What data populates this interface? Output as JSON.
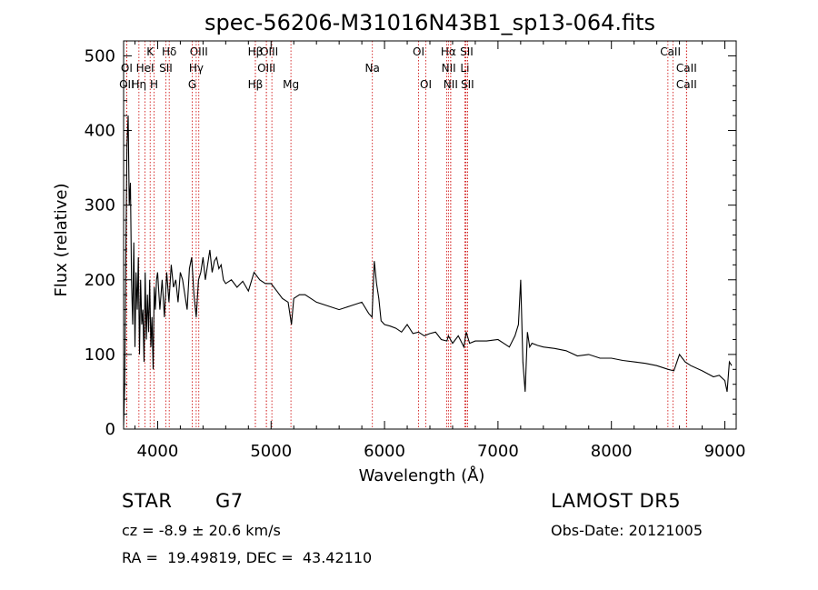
{
  "chart_data": {
    "type": "line",
    "title": "spec-56206-M31016N43B1_sp13-064.fits",
    "xlabel": "Wavelength (Å)",
    "ylabel": "Flux (relative)",
    "xlim": [
      3700,
      9100
    ],
    "ylim": [
      0,
      520
    ],
    "xticks": [
      4000,
      5000,
      6000,
      7000,
      8000,
      9000
    ],
    "yticks": [
      0,
      100,
      200,
      300,
      400,
      500
    ],
    "grid": false,
    "line_color": "#000000",
    "marker_color": "#cc0000",
    "series": [
      {
        "x": [
          3700,
          3710,
          3720,
          3730,
          3740,
          3750,
          3760,
          3770,
          3780,
          3790,
          3800,
          3810,
          3820,
          3830,
          3840,
          3850,
          3860,
          3870,
          3880,
          3890,
          3900,
          3910,
          3920,
          3930,
          3940,
          3950,
          3960,
          3970,
          3980,
          3990,
          4000,
          4020,
          4040,
          4060,
          4080,
          4100,
          4120,
          4140,
          4160,
          4180,
          4200,
          4220,
          4240,
          4260,
          4280,
          4300,
          4320,
          4340,
          4360,
          4380,
          4400,
          4420,
          4440,
          4460,
          4480,
          4500,
          4520,
          4540,
          4560,
          4580,
          4600,
          4650,
          4700,
          4750,
          4800,
          4850,
          4900,
          4950,
          5000,
          5050,
          5100,
          5150,
          5180,
          5200,
          5250,
          5300,
          5400,
          5500,
          5600,
          5700,
          5800,
          5860,
          5890,
          5910,
          5930,
          5950,
          5970,
          6000,
          6050,
          6100,
          6150,
          6200,
          6250,
          6300,
          6350,
          6400,
          6450,
          6500,
          6550,
          6563,
          6600,
          6650,
          6700,
          6720,
          6750,
          6800,
          6900,
          7000,
          7050,
          7100,
          7150,
          7180,
          7200,
          7220,
          7240,
          7260,
          7280,
          7300,
          7350,
          7400,
          7500,
          7600,
          7700,
          7800,
          7900,
          8000,
          8100,
          8200,
          8300,
          8400,
          8500,
          8550,
          8600,
          8650,
          8700,
          8800,
          8900,
          8950,
          9000,
          9020,
          9040,
          9060
        ],
        "y": [
          5,
          60,
          240,
          380,
          420,
          300,
          330,
          200,
          140,
          250,
          110,
          210,
          160,
          230,
          100,
          200,
          140,
          160,
          90,
          210,
          120,
          180,
          130,
          200,
          110,
          150,
          80,
          190,
          160,
          200,
          210,
          160,
          200,
          150,
          210,
          170,
          220,
          190,
          200,
          170,
          210,
          200,
          180,
          160,
          215,
          230,
          180,
          150,
          200,
          210,
          230,
          200,
          220,
          240,
          210,
          225,
          230,
          215,
          220,
          200,
          195,
          200,
          190,
          198,
          185,
          210,
          200,
          195,
          195,
          185,
          175,
          170,
          140,
          175,
          180,
          180,
          170,
          165,
          160,
          165,
          170,
          155,
          150,
          225,
          195,
          175,
          145,
          140,
          138,
          135,
          130,
          140,
          128,
          130,
          125,
          128,
          130,
          120,
          118,
          125,
          115,
          125,
          110,
          130,
          115,
          118,
          118,
          120,
          115,
          110,
          125,
          140,
          200,
          90,
          50,
          130,
          110,
          115,
          112,
          110,
          108,
          105,
          98,
          100,
          95,
          95,
          92,
          90,
          88,
          85,
          80,
          78,
          100,
          90,
          85,
          78,
          70,
          72,
          65,
          50,
          90,
          85
        ]
      }
    ],
    "line_markers": [
      {
        "label": "Hβ",
        "lines": [
          4861
        ],
        "row": 0
      },
      {
        "label": "K",
        "lines": [
          3934
        ],
        "row": 0
      },
      {
        "label": "Hδ",
        "lines": [
          4102
        ],
        "row": 0
      },
      {
        "label": "OIII",
        "lines": [
          4363
        ],
        "row": 0
      },
      {
        "label": "OIII",
        "lines": [
          4959,
          5007
        ],
        "row": 0
      },
      {
        "label": "OI",
        "lines": [
          6300
        ],
        "row": 0
      },
      {
        "label": "Hα",
        "lines": [
          6563
        ],
        "row": 0
      },
      {
        "label": "SII",
        "lines": [
          6717,
          6731
        ],
        "row": 0
      },
      {
        "label": "CaII",
        "lines": [
          8498,
          8542
        ],
        "row": 0
      },
      {
        "label": "OI",
        "lines": [
          3727
        ],
        "row": 1
      },
      {
        "label": "HeI",
        "lines": [
          3889
        ],
        "row": 1
      },
      {
        "label": "SII",
        "lines": [
          4072
        ],
        "row": 1
      },
      {
        "label": "Hγ",
        "lines": [
          4340
        ],
        "row": 1
      },
      {
        "label": "OIII",
        "lines": [
          4959
        ],
        "row": 1
      },
      {
        "label": "Na",
        "lines": [
          5893
        ],
        "row": 1
      },
      {
        "label": "NII",
        "lines": [
          6548,
          6583
        ],
        "row": 1
      },
      {
        "label": "Li",
        "lines": [
          6708
        ],
        "row": 1
      },
      {
        "label": "CaII",
        "lines": [
          8662
        ],
        "row": 1
      },
      {
        "label": "OII",
        "lines": [
          3727
        ],
        "row": 2
      },
      {
        "label": "Hη",
        "lines": [
          3835
        ],
        "row": 2
      },
      {
        "label": "H",
        "lines": [
          3969
        ],
        "row": 2
      },
      {
        "label": "G",
        "lines": [
          4305
        ],
        "row": 2
      },
      {
        "label": "Hβ",
        "lines": [
          4861
        ],
        "row": 2
      },
      {
        "label": "Mg",
        "lines": [
          5175
        ],
        "row": 2
      },
      {
        "label": "OI",
        "lines": [
          6364
        ],
        "row": 2
      },
      {
        "label": "NII",
        "lines": [
          6583
        ],
        "row": 2
      },
      {
        "label": "SII",
        "lines": [
          6731
        ],
        "row": 2
      },
      {
        "label": "CaII",
        "lines": [
          8662
        ],
        "row": 2
      }
    ],
    "marker_label_rows": [
      [
        "Hβ",
        "K",
        "Hδ",
        "OIII",
        "OIII",
        "OI",
        "Hα",
        "SII",
        "CaII"
      ],
      [
        "OI",
        "HeI",
        "SII",
        "Hγ",
        "OIII",
        "Na",
        "NII",
        "Li",
        "CaII"
      ],
      [
        "OII",
        "Hη",
        "H",
        "G",
        "Hβ",
        "Mg",
        "OI",
        "NII",
        "SII",
        "CaII"
      ]
    ]
  },
  "info": {
    "object_class": "STAR",
    "subclass": "G7",
    "redshift_text": "cz = -8.9 ± 20.6 km/s",
    "coords_text": "RA =  19.49819, DEC =  43.42110",
    "survey": "LAMOST DR5",
    "obs_date": "Obs-Date: 20121005"
  }
}
